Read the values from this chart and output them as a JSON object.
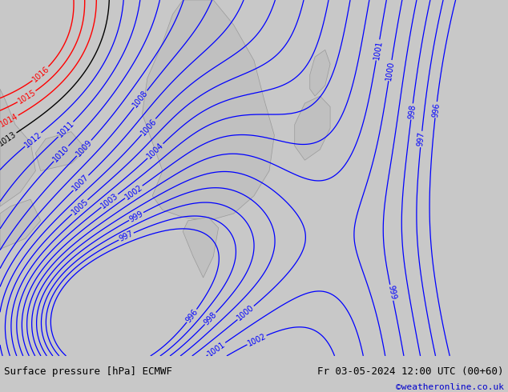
{
  "title_left": "Surface pressure [hPa] ECMWF",
  "title_right": "Fr 03-05-2024 12:00 UTC (00+60)",
  "watermark": "©weatheronline.co.uk",
  "background_color": "#b5e55e",
  "isobar_color_blue": "#0000ff",
  "isobar_color_red": "#ff0000",
  "isobar_color_black": "#000000",
  "bottom_bar_color": "#c8c8c8",
  "bottom_text_color": "#000000",
  "watermark_color": "#0000cc",
  "gray_land": "#c0c0c0",
  "gray_edge": "#999999",
  "fig_width": 6.34,
  "fig_height": 4.9,
  "dpi": 100,
  "red_levels": [
    1014,
    1015,
    1016
  ],
  "black_levels": [
    1013
  ],
  "all_levels": [
    996,
    997,
    998,
    999,
    1000,
    1001,
    1002,
    1003,
    1004,
    1005,
    1006,
    1007,
    1008,
    1009,
    1010,
    1011,
    1012,
    1013,
    1014,
    1015,
    1016
  ]
}
